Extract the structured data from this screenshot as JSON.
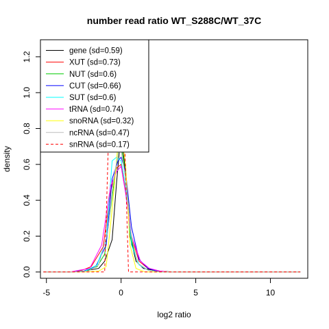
{
  "chart_data": {
    "type": "line",
    "title": "number read ratio WT_S288C/WT_37C",
    "xlabel": "log2 ratio",
    "ylabel": "density",
    "xlim": [
      -5.4,
      12.5
    ],
    "ylim": [
      -0.035,
      1.295
    ],
    "x_ticks": [
      -5,
      0,
      5,
      10
    ],
    "x_tick_labels": [
      "-5",
      "0",
      "5",
      "10"
    ],
    "y_ticks": [
      0.0,
      0.2,
      0.4,
      0.6,
      0.8,
      1.0,
      1.2
    ],
    "y_tick_labels": [
      "0.0",
      "0.2",
      "0.4",
      "0.6",
      "0.8",
      "1.0",
      "1.2"
    ],
    "grid": false,
    "legend_position": "top-left",
    "series": [
      {
        "name": "gene (sd=0.59)",
        "color": "#000000",
        "dash": "solid",
        "points": [
          [
            -5.2,
            0
          ],
          [
            -3.5,
            0
          ],
          [
            -2.5,
            0.005
          ],
          [
            -1.5,
            0.02
          ],
          [
            -1.1,
            0.06
          ],
          [
            -0.6,
            0.18
          ],
          [
            -0.3,
            0.5
          ],
          [
            0.0,
            0.78
          ],
          [
            0.3,
            0.55
          ],
          [
            0.6,
            0.2
          ],
          [
            1.0,
            0.06
          ],
          [
            1.5,
            0.02
          ],
          [
            2.5,
            0.005
          ],
          [
            3.5,
            0
          ],
          [
            12.0,
            0
          ]
        ]
      },
      {
        "name": "XUT (sd=0.73)",
        "color": "#ff0000",
        "dash": "solid",
        "points": [
          [
            -5.2,
            0
          ],
          [
            -3.3,
            0
          ],
          [
            -2.6,
            0.01
          ],
          [
            -2.0,
            0.03
          ],
          [
            -1.2,
            0.14
          ],
          [
            -0.7,
            0.45
          ],
          [
            -0.3,
            0.58
          ],
          [
            0.0,
            0.6
          ],
          [
            0.3,
            0.45
          ],
          [
            0.7,
            0.2
          ],
          [
            1.2,
            0.06
          ],
          [
            1.8,
            0.02
          ],
          [
            2.6,
            0.005
          ],
          [
            3.2,
            0
          ],
          [
            12.0,
            0
          ]
        ]
      },
      {
        "name": "NUT (sd=0.6)",
        "color": "#00cc00",
        "dash": "solid",
        "points": [
          [
            -5.2,
            0
          ],
          [
            -3.3,
            0
          ],
          [
            -2.4,
            0.005
          ],
          [
            -1.6,
            0.03
          ],
          [
            -1.1,
            0.1
          ],
          [
            -0.6,
            0.42
          ],
          [
            -0.2,
            0.66
          ],
          [
            0.0,
            0.7
          ],
          [
            0.3,
            0.55
          ],
          [
            0.7,
            0.18
          ],
          [
            1.1,
            0.05
          ],
          [
            1.8,
            0.01
          ],
          [
            2.6,
            0
          ],
          [
            12.0,
            0
          ]
        ]
      },
      {
        "name": "CUT (sd=0.66)",
        "color": "#0000ff",
        "dash": "solid",
        "points": [
          [
            -5.2,
            0
          ],
          [
            -3.3,
            0
          ],
          [
            -2.5,
            0.005
          ],
          [
            -1.7,
            0.03
          ],
          [
            -1.0,
            0.15
          ],
          [
            -0.6,
            0.52
          ],
          [
            -0.2,
            0.62
          ],
          [
            0.0,
            0.64
          ],
          [
            0.3,
            0.56
          ],
          [
            0.7,
            0.25
          ],
          [
            1.2,
            0.07
          ],
          [
            1.8,
            0.02
          ],
          [
            2.6,
            0
          ],
          [
            12.0,
            0
          ]
        ]
      },
      {
        "name": "SUT (sd=0.6)",
        "color": "#00ffff",
        "dash": "solid",
        "points": [
          [
            -5.2,
            0
          ],
          [
            -3.2,
            0
          ],
          [
            -2.4,
            0.005
          ],
          [
            -1.6,
            0.04
          ],
          [
            -1.0,
            0.18
          ],
          [
            -0.6,
            0.62
          ],
          [
            -0.3,
            0.64
          ],
          [
            0.0,
            0.62
          ],
          [
            0.3,
            0.48
          ],
          [
            0.7,
            0.15
          ],
          [
            1.2,
            0.04
          ],
          [
            1.8,
            0.01
          ],
          [
            2.6,
            0
          ],
          [
            12.0,
            0
          ]
        ]
      },
      {
        "name": "tRNA (sd=0.74)",
        "color": "#ff00ff",
        "dash": "solid",
        "points": [
          [
            -5.2,
            0
          ],
          [
            -3.4,
            0
          ],
          [
            -2.8,
            0.01
          ],
          [
            -2.1,
            0.02
          ],
          [
            -1.3,
            0.15
          ],
          [
            -0.7,
            0.48
          ],
          [
            -0.3,
            0.56
          ],
          [
            0.0,
            0.59
          ],
          [
            0.3,
            0.44
          ],
          [
            0.7,
            0.2
          ],
          [
            1.3,
            0.06
          ],
          [
            1.9,
            0.02
          ],
          [
            2.6,
            0.005
          ],
          [
            3.2,
            0
          ],
          [
            12.0,
            0
          ]
        ]
      },
      {
        "name": "snoRNA (sd=0.32)",
        "color": "#ffff00",
        "dash": "solid",
        "points": [
          [
            -5.2,
            0
          ],
          [
            -2.4,
            0
          ],
          [
            -1.5,
            0.005
          ],
          [
            -1.0,
            0.03
          ],
          [
            -0.6,
            0.35
          ],
          [
            -0.2,
            0.72
          ],
          [
            0.0,
            0.78
          ],
          [
            0.3,
            0.6
          ],
          [
            0.6,
            0.15
          ],
          [
            1.0,
            0.02
          ],
          [
            1.6,
            0
          ],
          [
            12.0,
            0
          ]
        ]
      },
      {
        "name": "ncRNA (sd=0.47)",
        "color": "#bebebe",
        "dash": "solid",
        "points": [
          [
            -5.2,
            0
          ],
          [
            -3.0,
            0
          ],
          [
            -2.2,
            0.005
          ],
          [
            -1.5,
            0.04
          ],
          [
            -0.9,
            0.22
          ],
          [
            -0.5,
            0.52
          ],
          [
            -0.2,
            0.66
          ],
          [
            0.0,
            0.68
          ],
          [
            0.3,
            0.52
          ],
          [
            0.7,
            0.2
          ],
          [
            1.1,
            0.05
          ],
          [
            1.8,
            0.01
          ],
          [
            2.6,
            0
          ],
          [
            12.0,
            0
          ]
        ]
      },
      {
        "name": "snRNA (sd=0.17)",
        "color": "#ff0000",
        "dash": "dashed",
        "points": [
          [
            -5.2,
            0
          ],
          [
            -1.1,
            0
          ],
          [
            -0.85,
            0.72
          ],
          [
            -0.6,
            0.8
          ],
          [
            -0.3,
            0.8
          ],
          [
            0.0,
            0.8
          ],
          [
            0.25,
            0.7
          ],
          [
            0.5,
            0.0
          ],
          [
            12.0,
            0
          ]
        ]
      }
    ]
  }
}
